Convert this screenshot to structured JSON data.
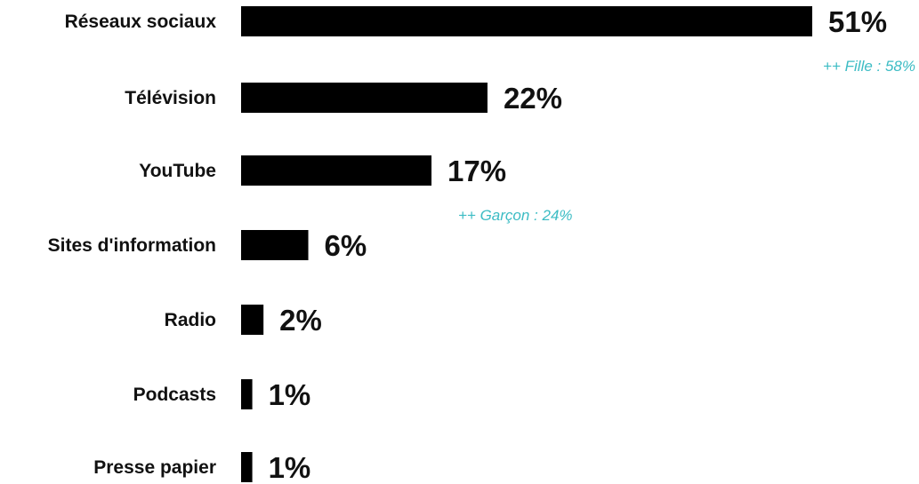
{
  "chart_data": {
    "type": "bar",
    "orientation": "horizontal",
    "categories": [
      "Réseaux sociaux",
      "Télévision",
      "YouTube",
      "Sites d'information",
      "Radio",
      "Podcasts",
      "Presse papier"
    ],
    "values": [
      51,
      22,
      17,
      6,
      2,
      1,
      1
    ],
    "value_labels": [
      "51%",
      "22%",
      "17%",
      "6%",
      "2%",
      "1%",
      "1%"
    ],
    "annotations": [
      {
        "text": "++ Fille : 58%",
        "category": "Réseaux sociaux"
      },
      {
        "text": "++ Garçon : 24%",
        "category": "YouTube"
      }
    ],
    "title": "",
    "xlabel": "",
    "ylabel": "",
    "xlim": [
      0,
      51
    ],
    "grid": false,
    "legend": "none"
  },
  "colors": {
    "bar": "#000000",
    "annotation": "#3cbcc4",
    "text": "#111111"
  }
}
